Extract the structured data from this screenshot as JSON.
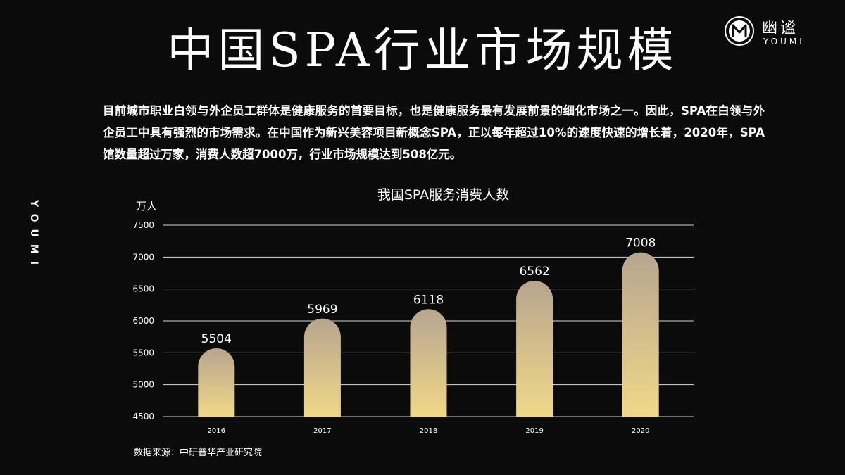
{
  "title": "中国SPA行业市场规模",
  "logo": {
    "name_cn": "幽谧",
    "name_en": "YOUMI"
  },
  "side_label": "YOUMI",
  "intro": "目前城市职业白领与外企员工群体是健康服务的首要目标，也是健康服务最有发展前景的细化市场之一。因此，SPA在白领与外企员工中具有强烈的市场需求。在中国作为新兴美容项目新概念SPA，正以每年超过10%的速度快速的增长着，2020年，SPA馆数量超过万家，消费人数超7000万，行业市场规模达到508亿元。",
  "source": "数据来源：中研普华产业研究院",
  "colors": {
    "background": "#0b0b0b",
    "bar_top": "#b7a58f",
    "bar_bottom": "#f0d888",
    "grid": "#d8d8d8"
  },
  "chart_data": {
    "type": "bar",
    "title": "我国SPA服务消费人数",
    "ylabel": "万人",
    "xlabel": "",
    "categories": [
      "2016",
      "2017",
      "2018",
      "2019",
      "2020"
    ],
    "values": [
      5504,
      5969,
      6118,
      6562,
      7008
    ],
    "ylim": [
      4500,
      7500
    ],
    "yticks": [
      4500,
      5000,
      5500,
      6000,
      6500,
      7000,
      7500
    ],
    "grid": true,
    "data_labels": true
  }
}
